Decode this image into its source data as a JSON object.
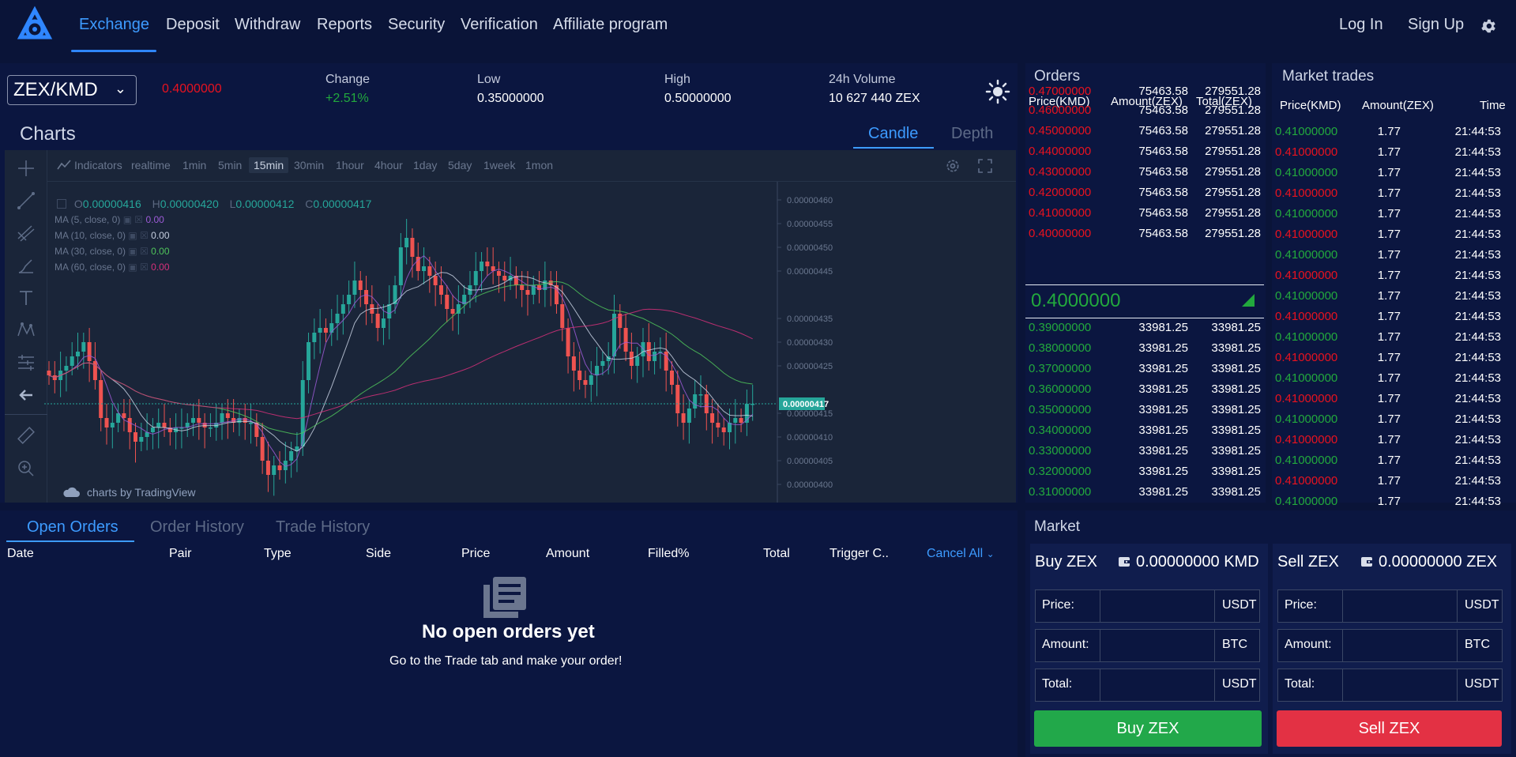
{
  "nav": {
    "items": [
      "Exchange",
      "Deposit",
      "Withdraw",
      "Reports",
      "Security",
      "Verification",
      "Affiliate program"
    ],
    "login": "Log In",
    "signup": "Sign Up"
  },
  "ticker": {
    "pair": "ZEX/KMD",
    "last_price": "0.4000000",
    "change_label": "Change",
    "change_value": "+2.51%",
    "low_label": "Low",
    "low_value": "0.35000000",
    "high_label": "High",
    "high_value": "0.50000000",
    "volume_label": "24h Volume",
    "volume_value": "10 627 440 ZEX"
  },
  "charts": {
    "title": "Charts",
    "tab_candle": "Candle",
    "tab_depth": "Depth",
    "indicators": "Indicators",
    "timeframes": [
      "realtime",
      "1min",
      "5min",
      "15min",
      "30min",
      "1hour",
      "4hour",
      "1day",
      "5day",
      "1week",
      "1mon"
    ],
    "selected_timeframe": "15min",
    "ohlc": {
      "o_label": "O",
      "o": "0.00000416",
      "h_label": "H",
      "h": "0.00000420",
      "l_label": "L",
      "l": "0.00000412",
      "c_label": "C",
      "c": "0.00000417"
    },
    "ma": [
      {
        "label": "MA (5, close, 0)",
        "value": "0.00",
        "color": "#9c5bd6"
      },
      {
        "label": "MA (10, close, 0)",
        "value": "0.00",
        "color": "#c6cfe0"
      },
      {
        "label": "MA (30, close, 0)",
        "value": "0.00",
        "color": "#4fc45a"
      },
      {
        "label": "MA (60, close, 0)",
        "value": "0.00",
        "color": "#d6307a"
      }
    ],
    "yticks": [
      "0.00000460",
      "0.00000455",
      "0.00000450",
      "0.00000445",
      "0.00000435",
      "0.00000430",
      "0.00000425",
      "0.00000415",
      "0.00000410",
      "0.00000405",
      "0.00000400"
    ],
    "current_tag": "0.00000417",
    "credit": "charts by TradingView",
    "colors": {
      "up": "#26a69a",
      "down": "#ef5350"
    }
  },
  "chart_data": {
    "type": "candlestick",
    "interval": "15min",
    "ylim": [
      3.98e-06,
      4.63e-06
    ],
    "closes": [
      4.23,
      4.22,
      4.24,
      4.25,
      4.27,
      4.28,
      4.3,
      4.26,
      4.22,
      4.14,
      4.12,
      4.13,
      4.15,
      4.14,
      4.11,
      4.09,
      4.1,
      4.11,
      4.12,
      4.13,
      4.12,
      4.11,
      4.12,
      4.12,
      4.13,
      4.14,
      4.13,
      4.12,
      4.12,
      4.13,
      4.15,
      4.14,
      4.13,
      4.14,
      4.13,
      4.13,
      4.1,
      4.05,
      4.02,
      4.04,
      4.03,
      4.05,
      4.07,
      4.08,
      4.22,
      4.3,
      4.32,
      4.33,
      4.32,
      4.34,
      4.36,
      4.38,
      4.4,
      4.43,
      4.41,
      4.38,
      4.36,
      4.33,
      4.35,
      4.38,
      4.42,
      4.5,
      4.52,
      4.48,
      4.45,
      4.46,
      4.44,
      4.42,
      4.4,
      4.37,
      4.36,
      4.38,
      4.4,
      4.42,
      4.45,
      4.47,
      4.46,
      4.45,
      4.44,
      4.43,
      4.44,
      4.42,
      4.41,
      4.4,
      4.42,
      4.41,
      4.43,
      4.42,
      4.38,
      4.33,
      4.27,
      4.24,
      4.22,
      4.21,
      4.23,
      4.25,
      4.26,
      4.27,
      4.36,
      4.33,
      4.28,
      4.25,
      4.27,
      4.3,
      4.26,
      4.28,
      4.28,
      4.24,
      4.21,
      4.15,
      4.13,
      4.16,
      4.19,
      4.19,
      4.15,
      4.13,
      4.12,
      4.11,
      4.13,
      4.14,
      4.13,
      4.17,
      4.17
    ]
  },
  "orders": {
    "title": "Orders",
    "headers": [
      "Price(KMD)",
      "Amount(ZEX)",
      "Total(ZEX)"
    ],
    "asks": [
      {
        "price": "0.47000000",
        "amount": "75463.58",
        "total": "279551.28"
      },
      {
        "price": "0.46000000",
        "amount": "75463.58",
        "total": "279551.28"
      },
      {
        "price": "0.45000000",
        "amount": "75463.58",
        "total": "279551.28"
      },
      {
        "price": "0.44000000",
        "amount": "75463.58",
        "total": "279551.28"
      },
      {
        "price": "0.43000000",
        "amount": "75463.58",
        "total": "279551.28"
      },
      {
        "price": "0.42000000",
        "amount": "75463.58",
        "total": "279551.28"
      },
      {
        "price": "0.41000000",
        "amount": "75463.58",
        "total": "279551.28"
      },
      {
        "price": "0.40000000",
        "amount": "75463.58",
        "total": "279551.28"
      }
    ],
    "mid_price": "0.4000000",
    "bids": [
      {
        "price": "0.39000000",
        "amount": "33981.25",
        "total": "33981.25"
      },
      {
        "price": "0.38000000",
        "amount": "33981.25",
        "total": "33981.25"
      },
      {
        "price": "0.37000000",
        "amount": "33981.25",
        "total": "33981.25"
      },
      {
        "price": "0.36000000",
        "amount": "33981.25",
        "total": "33981.25"
      },
      {
        "price": "0.35000000",
        "amount": "33981.25",
        "total": "33981.25"
      },
      {
        "price": "0.34000000",
        "amount": "33981.25",
        "total": "33981.25"
      },
      {
        "price": "0.33000000",
        "amount": "33981.25",
        "total": "33981.25"
      },
      {
        "price": "0.32000000",
        "amount": "33981.25",
        "total": "33981.25"
      },
      {
        "price": "0.31000000",
        "amount": "33981.25",
        "total": "33981.25"
      }
    ]
  },
  "trades": {
    "title": "Market trades",
    "headers": [
      "Price(KMD)",
      "Amount(ZEX)",
      "Time"
    ],
    "rows": [
      {
        "price": "0.41000000",
        "amount": "1.77",
        "time": "21:44:53",
        "side": "buy"
      },
      {
        "price": "0.41000000",
        "amount": "1.77",
        "time": "21:44:53",
        "side": "sell"
      },
      {
        "price": "0.41000000",
        "amount": "1.77",
        "time": "21:44:53",
        "side": "buy"
      },
      {
        "price": "0.41000000",
        "amount": "1.77",
        "time": "21:44:53",
        "side": "sell"
      },
      {
        "price": "0.41000000",
        "amount": "1.77",
        "time": "21:44:53",
        "side": "buy"
      },
      {
        "price": "0.41000000",
        "amount": "1.77",
        "time": "21:44:53",
        "side": "sell"
      },
      {
        "price": "0.41000000",
        "amount": "1.77",
        "time": "21:44:53",
        "side": "buy"
      },
      {
        "price": "0.41000000",
        "amount": "1.77",
        "time": "21:44:53",
        "side": "sell"
      },
      {
        "price": "0.41000000",
        "amount": "1.77",
        "time": "21:44:53",
        "side": "buy"
      },
      {
        "price": "0.41000000",
        "amount": "1.77",
        "time": "21:44:53",
        "side": "sell"
      },
      {
        "price": "0.41000000",
        "amount": "1.77",
        "time": "21:44:53",
        "side": "buy"
      },
      {
        "price": "0.41000000",
        "amount": "1.77",
        "time": "21:44:53",
        "side": "sell"
      },
      {
        "price": "0.41000000",
        "amount": "1.77",
        "time": "21:44:53",
        "side": "buy"
      },
      {
        "price": "0.41000000",
        "amount": "1.77",
        "time": "21:44:53",
        "side": "sell"
      },
      {
        "price": "0.41000000",
        "amount": "1.77",
        "time": "21:44:53",
        "side": "buy"
      },
      {
        "price": "0.41000000",
        "amount": "1.77",
        "time": "21:44:53",
        "side": "sell"
      },
      {
        "price": "0.41000000",
        "amount": "1.77",
        "time": "21:44:53",
        "side": "buy"
      },
      {
        "price": "0.41000000",
        "amount": "1.77",
        "time": "21:44:53",
        "side": "sell"
      },
      {
        "price": "0.41000000",
        "amount": "1.77",
        "time": "21:44:53",
        "side": "buy"
      }
    ]
  },
  "bottom": {
    "tabs": [
      "Open Orders",
      "Order History",
      "Trade History"
    ],
    "columns": [
      "Date",
      "Pair",
      "Type",
      "Side",
      "Price",
      "Amount",
      "Filled%",
      "Total",
      "Trigger C.."
    ],
    "cancel_all": "Cancel All",
    "empty_title": "No open orders yet",
    "empty_sub": "Go to the Trade tab and make your order!"
  },
  "market": {
    "title": "Market",
    "buy": {
      "title": "Buy ZEX",
      "balance": "0.00000000 KMD",
      "price_label": "Price:",
      "price_unit": "USDT",
      "amount_label": "Amount:",
      "amount_unit": "BTC",
      "total_label": "Total:",
      "total_unit": "USDT",
      "button": "Buy ZEX"
    },
    "sell": {
      "title": "Sell ZEX",
      "balance": "0.00000000 ZEX",
      "price_label": "Price:",
      "price_unit": "USDT",
      "amount_label": "Amount:",
      "amount_unit": "BTC",
      "total_label": "Total:",
      "total_unit": "USDT",
      "button": "Sell ZEX"
    }
  },
  "theme": {
    "accent": "#3d9bff",
    "up": "#22a93d",
    "down": "#e8121f",
    "buy_button": "#22a84a",
    "sell_button": "#e33144"
  }
}
